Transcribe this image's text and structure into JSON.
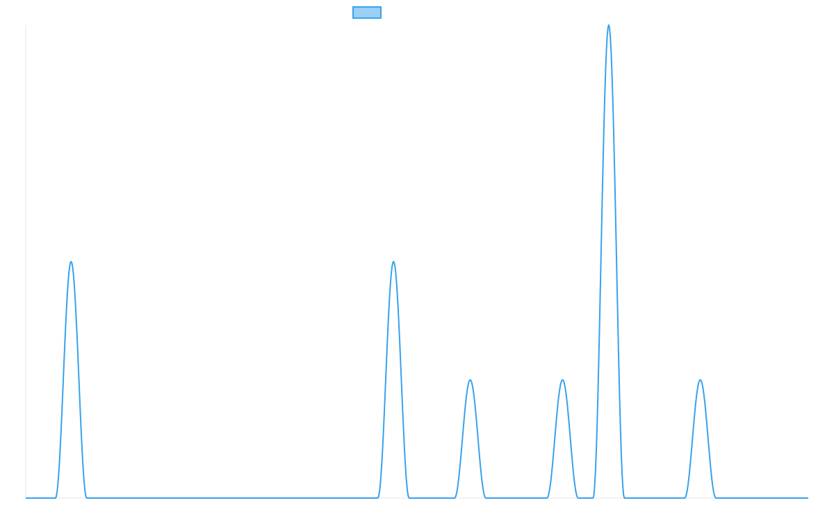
{
  "chart_data": {
    "type": "line",
    "title": "",
    "xlabel": "",
    "ylabel": "",
    "xlim": [
      0,
      1000
    ],
    "ylim": [
      0,
      1
    ],
    "grid": false,
    "legend": {
      "placement": "top-center",
      "show_label": false
    },
    "series": [
      {
        "name": "",
        "color": "#36a2eb",
        "fill_color": "#9ad0f5",
        "peaks": [
          {
            "center": 58,
            "height": 0.5,
            "halfwidth": 20
          },
          {
            "center": 470,
            "height": 0.5,
            "halfwidth": 20
          },
          {
            "center": 568,
            "height": 0.25,
            "halfwidth": 20
          },
          {
            "center": 686,
            "height": 0.25,
            "halfwidth": 20
          },
          {
            "center": 745,
            "height": 1.0,
            "halfwidth": 20
          },
          {
            "center": 862,
            "height": 0.25,
            "halfwidth": 20
          }
        ]
      }
    ]
  }
}
